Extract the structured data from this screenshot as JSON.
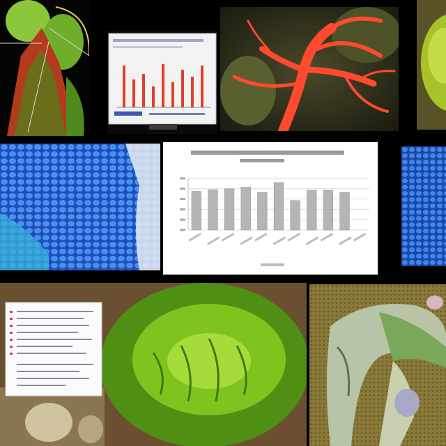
{
  "image": {
    "panels": [
      "plant-specimen-photo",
      "monitor-with-bar-chart",
      "red-vascular-branching-photo",
      "green-sphere-photo",
      "blue-cell-texture-photo",
      "gray-bar-chart",
      "blue-cell-texture-photo",
      "document-page-over-green-tissue-photo",
      "animal-limb-on-textured-surface"
    ]
  },
  "chart_data": {
    "type": "bar",
    "title": "",
    "categories": [
      "",
      "",
      "",
      "",
      "",
      "",
      "",
      "",
      "",
      "",
      ""
    ],
    "values": [
      75,
      78,
      80,
      83,
      73,
      92,
      57,
      77,
      77,
      73,
      0
    ],
    "ylim": [
      0,
      100
    ],
    "grid": true,
    "bar_color": "#b5b5b5"
  },
  "colors": {
    "background": "#000000",
    "vessel_red": "#ff4a2e",
    "leaf_green": "#7fc41e",
    "cell_blue": "#2f6bd8"
  }
}
